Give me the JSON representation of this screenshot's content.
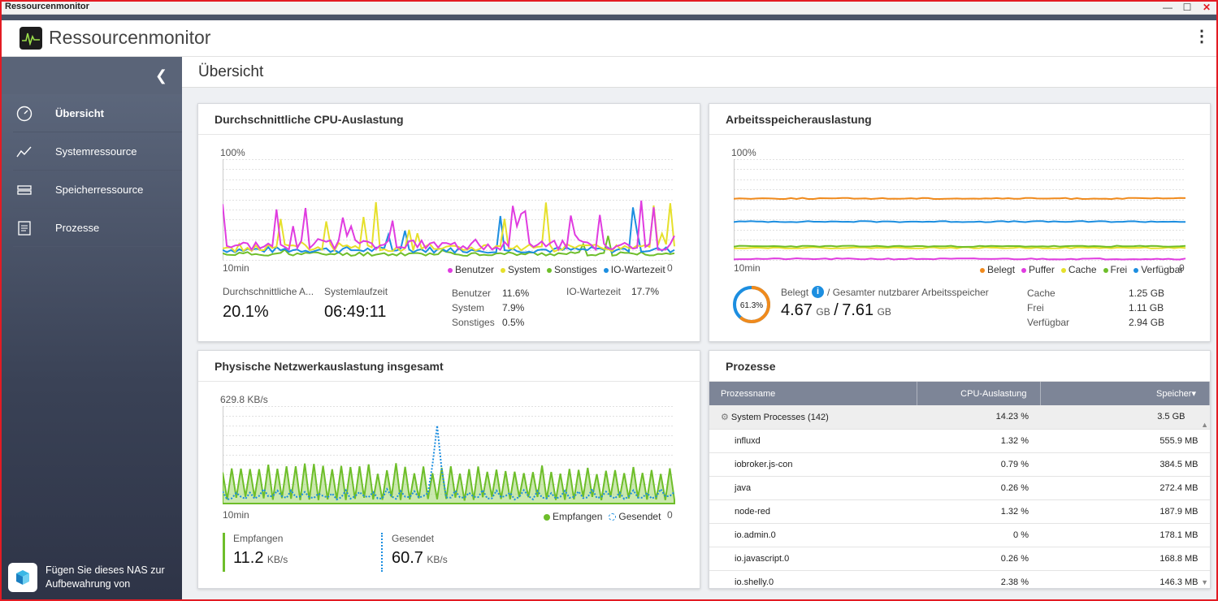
{
  "window": {
    "title": "Ressourcenmonitor"
  },
  "app": {
    "title": "Ressourcenmonitor"
  },
  "sidebar": {
    "items": [
      {
        "label": "Übersicht",
        "icon": "dashboard-icon",
        "active": true
      },
      {
        "label": "Systemressource",
        "icon": "chart-line-icon"
      },
      {
        "label": "Speicherressource",
        "icon": "storage-icon"
      },
      {
        "label": "Prozesse",
        "icon": "list-icon"
      }
    ],
    "footer": "Fügen Sie dieses NAS zur Aufbewahrung von"
  },
  "page": {
    "title": "Übersicht"
  },
  "cpu": {
    "title": "Durchschnittliche CPU-Auslastung",
    "ymax": "100%",
    "xlabel": "10min",
    "zero": "0",
    "legend": [
      "Benutzer",
      "System",
      "Sonstiges",
      "IO-Wartezeit"
    ],
    "avg_label": "Durchschnittliche A...",
    "avg_value": "20.1%",
    "uptime_label": "Systemlaufzeit",
    "uptime_value": "06:49:11",
    "stats": [
      {
        "label": "Benutzer",
        "value": "11.6%"
      },
      {
        "label": "System",
        "value": "7.9%"
      },
      {
        "label": "Sonstiges",
        "value": "0.5%"
      }
    ],
    "io_label": "IO-Wartezeit",
    "io_value": "17.7%",
    "colors": {
      "Benutzer": "#e03ce0",
      "System": "#e6e02b",
      "Sonstiges": "#6ebe2a",
      "IO-Wartezeit": "#1c8ee0"
    }
  },
  "mem": {
    "title": "Arbeitsspeicherauslastung",
    "ymax": "100%",
    "xlabel": "10min",
    "zero": "0",
    "legend": [
      "Belegt",
      "Puffer",
      "Cache",
      "Frei",
      "Verfügbar"
    ],
    "gauge": "61.3%",
    "gauge_value": 61.3,
    "used_label": "Belegt",
    "total_label": "/ Gesamter nutzbarer Arbeitsspeicher",
    "used": "4.67",
    "total": "7.61",
    "unit": "GB",
    "stats": [
      {
        "label": "Cache",
        "value": "1.25 GB"
      },
      {
        "label": "Frei",
        "value": "1.11 GB"
      },
      {
        "label": "Verfügbar",
        "value": "2.94 GB"
      }
    ],
    "colors": {
      "Belegt": "#f08a1c",
      "Puffer": "#e03ce0",
      "Cache": "#e6e02b",
      "Frei": "#6ebe2a",
      "Verfügbar": "#1c8ee0"
    }
  },
  "net": {
    "title": "Physische Netzwerkauslastung insgesamt",
    "ymax": "629.8 KB/s",
    "xlabel": "10min",
    "zero": "0",
    "legend": [
      "Empfangen",
      "Gesendet"
    ],
    "recv_label": "Empfangen",
    "recv_value": "11.2",
    "sent_label": "Gesendet",
    "sent_value": "60.7",
    "unit": "KB/s"
  },
  "proc": {
    "title": "Prozesse",
    "columns": [
      "Prozessname",
      "CPU-Auslastung",
      "Speicher"
    ],
    "rows": [
      {
        "name": "System Processes (142)",
        "cpu": "14.23 %",
        "mem": "3.5 GB",
        "group": true
      },
      {
        "name": "influxd",
        "cpu": "1.32 %",
        "mem": "555.9 MB"
      },
      {
        "name": "iobroker.js-con",
        "cpu": "0.79 %",
        "mem": "384.5 MB"
      },
      {
        "name": "java",
        "cpu": "0.26 %",
        "mem": "272.4 MB"
      },
      {
        "name": "node-red",
        "cpu": "1.32 %",
        "mem": "187.9 MB"
      },
      {
        "name": "io.admin.0",
        "cpu": "0 %",
        "mem": "178.1 MB"
      },
      {
        "name": "io.javascript.0",
        "cpu": "0.26 %",
        "mem": "168.8 MB"
      },
      {
        "name": "io.shelly.0",
        "cpu": "2.38 %",
        "mem": "146.3 MB"
      }
    ]
  }
}
